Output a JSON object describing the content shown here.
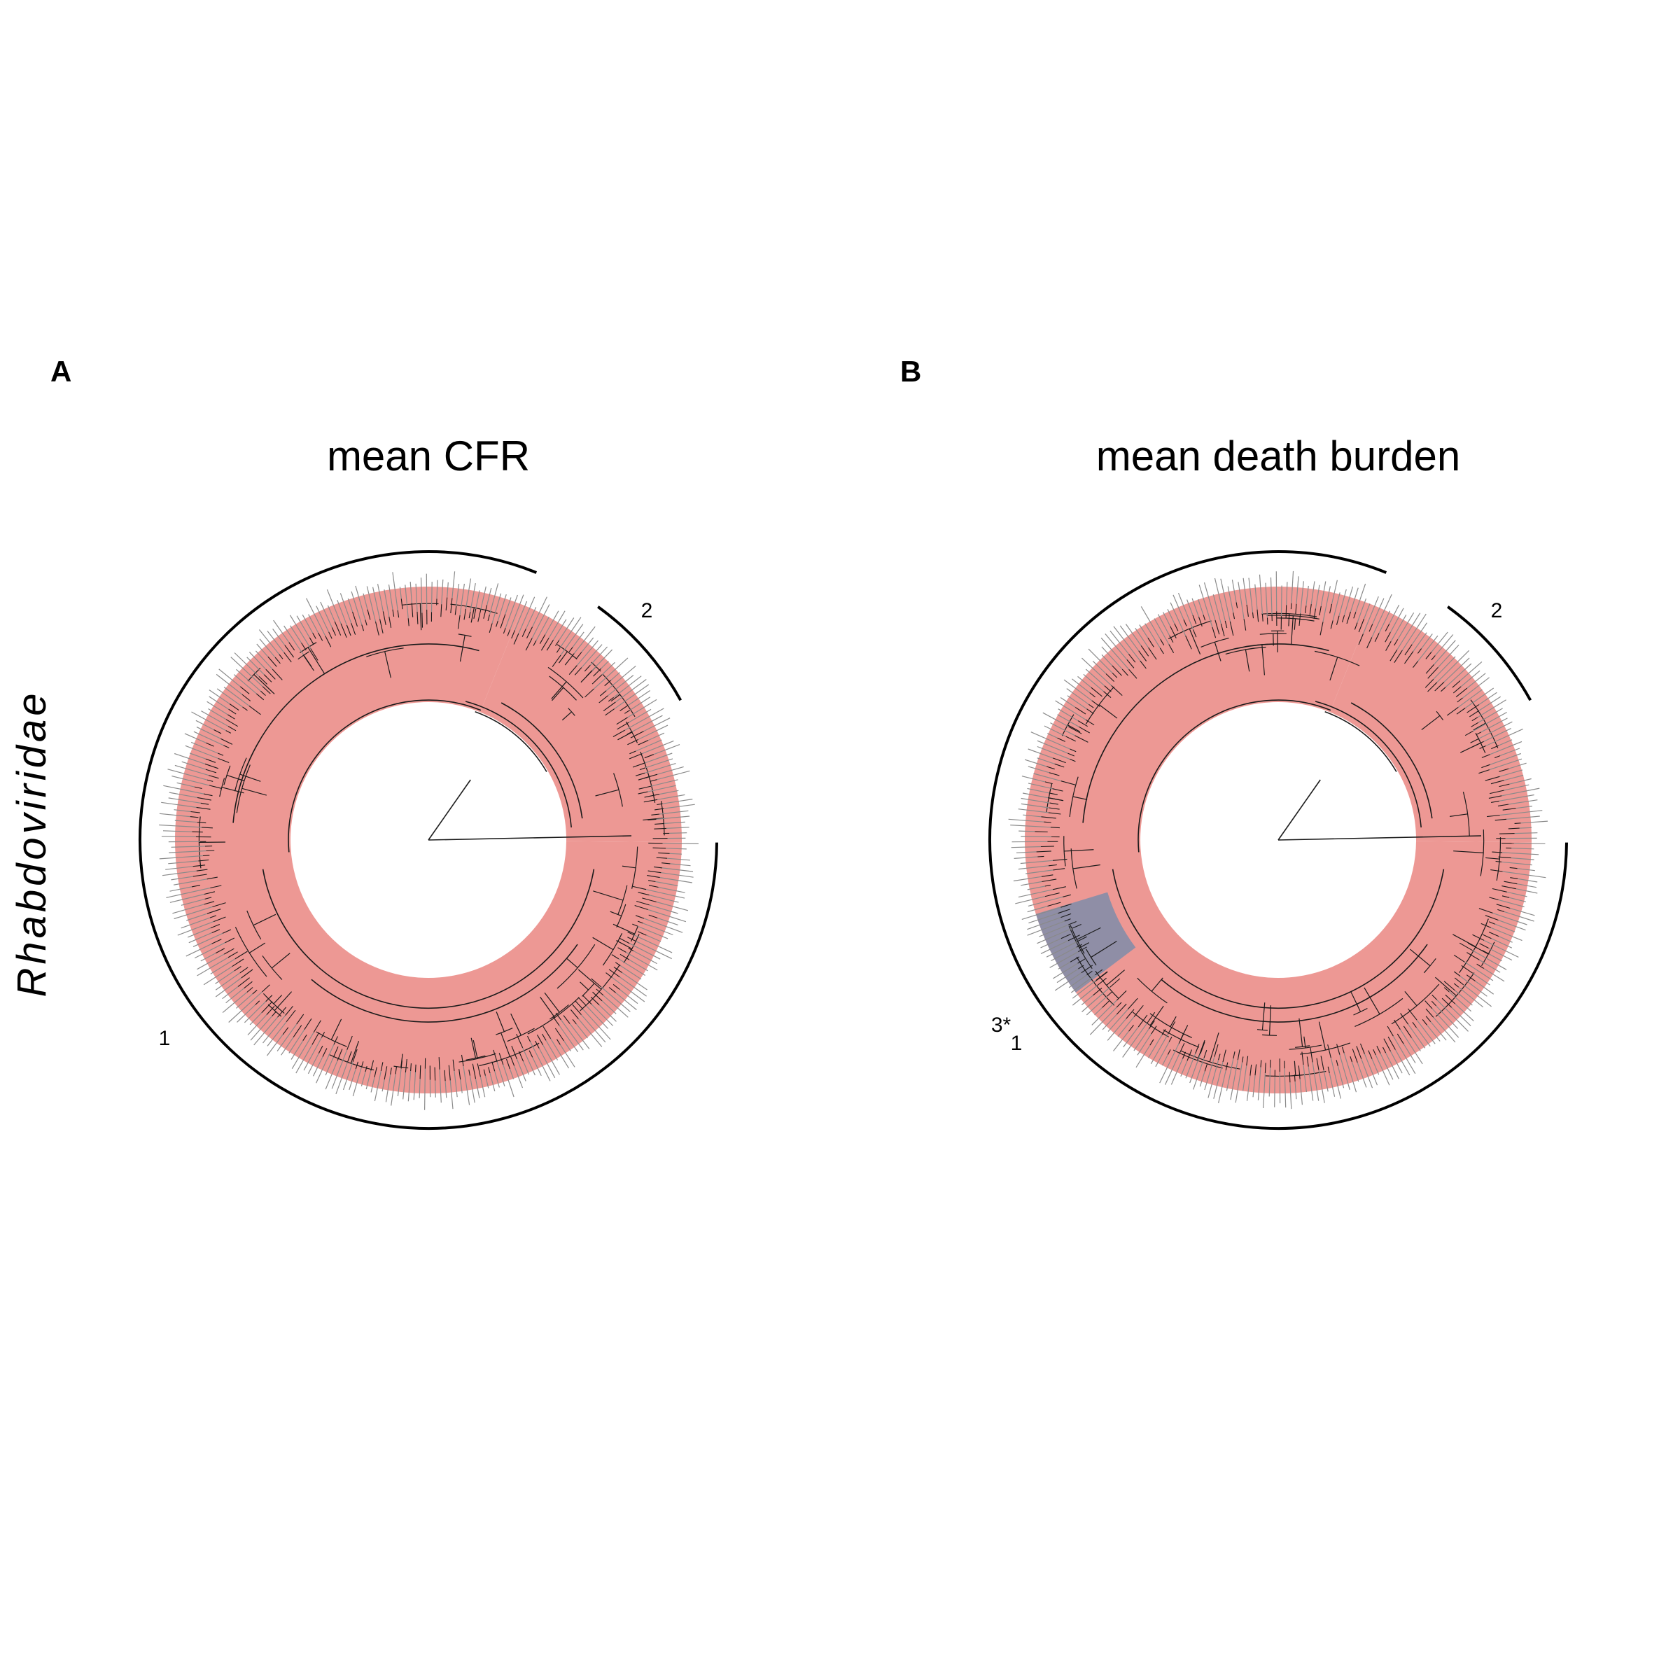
{
  "family_label": "Rhabdoviridae",
  "colors": {
    "high_clade": "#ed9894",
    "low_clade": "#8a8da6",
    "branch": "#1a1a1a",
    "tip": "#8a8a8a",
    "bracket": "#000000"
  },
  "panels": [
    {
      "letter": "A",
      "title": "mean CFR",
      "clade_labels": [
        "1",
        "2"
      ],
      "highlighted_clades": [
        {
          "clade": "1",
          "color": "high_clade"
        },
        {
          "clade": "2",
          "color": "high_clade"
        }
      ]
    },
    {
      "letter": "B",
      "title": "mean death burden",
      "clade_labels": [
        "1",
        "2",
        "3*"
      ],
      "highlighted_clades": [
        {
          "clade": "1",
          "color": "high_clade"
        },
        {
          "clade": "2",
          "color": "high_clade"
        },
        {
          "clade": "3*",
          "color": "low_clade"
        }
      ]
    }
  ]
}
